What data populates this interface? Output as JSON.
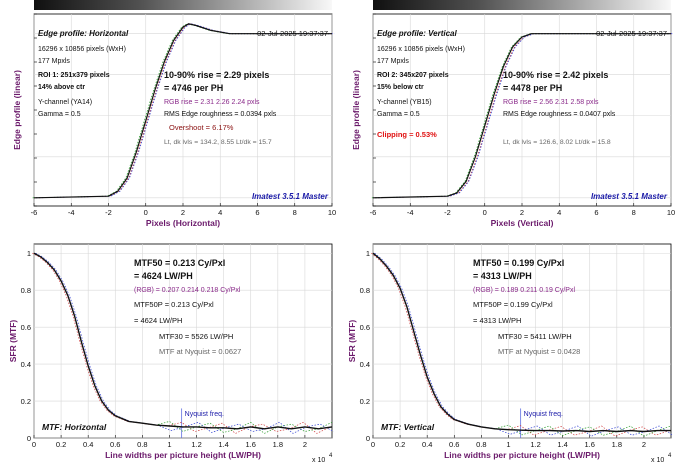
{
  "colors": {
    "axis_title": "#6b1a6b",
    "main_curve": "#111111",
    "red_curve": "#d04040",
    "green_curve": "#2a9a2a",
    "blue_curve": "#3040d0",
    "rgb_text": "#8a2a8a",
    "overshoot_text": "#8a1010",
    "clipping_text": "#e01010",
    "grey_text": "#666666",
    "imatest_text": "#1a1aa8",
    "nyquist_line": "#6070e0",
    "grid": "#d8d8d8"
  },
  "chart_data": [
    {
      "type": "line",
      "panel": "edge-horizontal",
      "title": "Edge profile: Horizontal",
      "date": "02-Jul-2025 19:37:37",
      "xlabel": "Pixels (Horizontal)",
      "ylabel": "Edge profile (linear)",
      "xlim": [
        -6,
        10
      ],
      "xticks": [
        "-6",
        "-4",
        "-2",
        "0",
        "2",
        "4",
        "6",
        "8",
        "10"
      ],
      "grid": true,
      "info_lines": [
        "16296 x 10856 pixels (WxH)",
        "177 Mpxls",
        "ROI 1:  251x379 pixels",
        "14% above ctr",
        "Y-channel  (YA14)",
        "Gamma = 0.5"
      ],
      "rise_line1": "10-90% rise = 2.29 pixels",
      "rise_line2": "= 4746 per PH",
      "rgb_line": "RGB rise = 2.31   2.26   2.24 pxls",
      "rms_line": "RMS Edge roughness = 0.0394 pxls",
      "extra_line": "Overshoot = 6.17%",
      "lt_line": "Lt, dk lvls = 134.2, 8.55   Lt/dk = 15.7",
      "watermark": "Imatest 3.5.1 Master",
      "series": {
        "x": [
          -6,
          -2,
          -1.5,
          -1,
          -0.5,
          0,
          0.5,
          1,
          1.5,
          2,
          2.3,
          2.7,
          3.5,
          4.5,
          6,
          8,
          10
        ],
        "y": [
          0,
          0.01,
          0.04,
          0.12,
          0.28,
          0.47,
          0.66,
          0.83,
          0.96,
          1.04,
          1.06,
          1.05,
          1.02,
          1.0,
          1.0,
          1.0,
          1.0
        ]
      },
      "offsets": [
        0.08,
        -0.07,
        0.12
      ]
    },
    {
      "type": "line",
      "panel": "edge-vertical",
      "title": "Edge profile: Vertical",
      "date": "02-Jul-2025 19:37:37",
      "xlabel": "Pixels (Vertical)",
      "ylabel": "Edge profile (linear)",
      "xlim": [
        -6,
        10
      ],
      "xticks": [
        "-6",
        "-4",
        "-2",
        "0",
        "2",
        "4",
        "6",
        "8",
        "10"
      ],
      "grid": true,
      "info_lines": [
        "16296 x 10856 pixels (WxH)",
        "177 Mpxls",
        "ROI 2:  345x207 pixels",
        "15% below ctr",
        "Y-channel  (YB15)",
        "Gamma = 0.5"
      ],
      "rise_line1": "10-90% rise = 2.42 pixels",
      "rise_line2": "= 4478 per PH",
      "rgb_line": "RGB rise = 2.56   2.31   2.58 pxls",
      "rms_line": "RMS Edge roughness = 0.0407 pxls",
      "extra_line": "Clipping =   0.53%",
      "lt_line": "Lt, dk lvls = 126.6, 8.02   Lt/dk = 15.8",
      "watermark": "Imatest 3.5.1 Master",
      "series": {
        "x": [
          -6,
          -2,
          -1.5,
          -1,
          -0.5,
          0,
          0.5,
          1,
          1.5,
          2,
          2.5,
          3,
          4,
          6,
          8,
          10
        ],
        "y": [
          0,
          0.01,
          0.03,
          0.1,
          0.25,
          0.44,
          0.63,
          0.8,
          0.92,
          0.98,
          1.0,
          1.0,
          1.0,
          1.0,
          1.0,
          1.0
        ]
      },
      "offsets": [
        0.1,
        -0.06,
        0.14
      ]
    },
    {
      "type": "line",
      "panel": "mtf-horizontal",
      "title": "MTF: Horizontal",
      "xlabel": "Line widths per picture height (LW/PH)",
      "ylabel": "SFR (MTF)",
      "xlim": [
        0,
        2.2
      ],
      "ylim": [
        0,
        1
      ],
      "x_multiplier": "x 10",
      "x_multiplier_exp": "4",
      "xticks": [
        "0",
        "0.2",
        "0.4",
        "0.6",
        "0.8",
        "1",
        "1.2",
        "1.4",
        "1.6",
        "1.8",
        "2"
      ],
      "yticks": [
        "0",
        "0.2",
        "0.4",
        "0.6",
        "0.8",
        "1"
      ],
      "grid": true,
      "mtf50_line1": "MTF50 = 0.213 Cy/Pxl",
      "mtf50_line2": "= 4624 LW/PH",
      "rgb_line": "(RGB) = 0.207  0.214  0.218 Cy/Pxl",
      "mtf50p_line1": "MTF50P = 0.213 Cy/Pxl",
      "mtf50p_line2": "= 4624 LW/PH",
      "mtf30_line": "MTF30 = 5526 LW/PH",
      "nyquist_line": "MTF at Nyquist = 0.0627",
      "nyquist_label": "Nyquist freq.",
      "nyquist_x": 1.09,
      "series": {
        "x": [
          0,
          0.05,
          0.1,
          0.15,
          0.2,
          0.25,
          0.3,
          0.35,
          0.4,
          0.45,
          0.5,
          0.55,
          0.6,
          0.7,
          0.8,
          0.9,
          1.0,
          1.1,
          1.2,
          1.3,
          1.4,
          1.5,
          1.6,
          1.7,
          1.8,
          1.9,
          2.0,
          2.1,
          2.2
        ],
        "y": [
          1.0,
          0.98,
          0.95,
          0.91,
          0.85,
          0.77,
          0.66,
          0.52,
          0.39,
          0.28,
          0.2,
          0.15,
          0.12,
          0.09,
          0.08,
          0.07,
          0.065,
          0.06,
          0.06,
          0.055,
          0.055,
          0.05,
          0.06,
          0.05,
          0.06,
          0.05,
          0.06,
          0.05,
          0.06
        ]
      }
    },
    {
      "type": "line",
      "panel": "mtf-vertical",
      "title": "MTF: Vertical",
      "xlabel": "Line widths per picture height (LW/PH)",
      "ylabel": "SFR (MTF)",
      "xlim": [
        0,
        2.2
      ],
      "ylim": [
        0,
        1
      ],
      "x_multiplier": "x 10",
      "x_multiplier_exp": "4",
      "xticks": [
        "0",
        "0.2",
        "0.4",
        "0.6",
        "0.8",
        "1",
        "1.2",
        "1.4",
        "1.6",
        "1.8",
        "2"
      ],
      "yticks": [
        "0",
        "0.2",
        "0.4",
        "0.6",
        "0.8",
        "1"
      ],
      "grid": true,
      "mtf50_line1": "MTF50 = 0.199 Cy/Pxl",
      "mtf50_line2": "= 4313 LW/PH",
      "rgb_line": "(RGB) = 0.189  0.211  0.19 Cy/Pxl",
      "mtf50p_line1": "MTF50P = 0.199 Cy/Pxl",
      "mtf50p_line2": "= 4313 LW/PH",
      "mtf30_line": "MTF30 = 5411 LW/PH",
      "nyquist_line": "MTF at Nyquist = 0.0428",
      "nyquist_label": "Nyquist freq.",
      "nyquist_x": 1.09,
      "series": {
        "x": [
          0,
          0.05,
          0.1,
          0.15,
          0.2,
          0.25,
          0.3,
          0.35,
          0.4,
          0.45,
          0.5,
          0.55,
          0.6,
          0.7,
          0.8,
          0.9,
          1.0,
          1.1,
          1.2,
          1.3,
          1.4,
          1.5,
          1.6,
          1.7,
          1.8,
          1.9,
          2.0,
          2.1,
          2.2
        ],
        "y": [
          1.0,
          0.97,
          0.93,
          0.88,
          0.81,
          0.71,
          0.58,
          0.45,
          0.33,
          0.24,
          0.17,
          0.13,
          0.1,
          0.075,
          0.06,
          0.05,
          0.045,
          0.042,
          0.04,
          0.04,
          0.038,
          0.04,
          0.035,
          0.04,
          0.035,
          0.04,
          0.035,
          0.04,
          0.04
        ]
      }
    }
  ]
}
